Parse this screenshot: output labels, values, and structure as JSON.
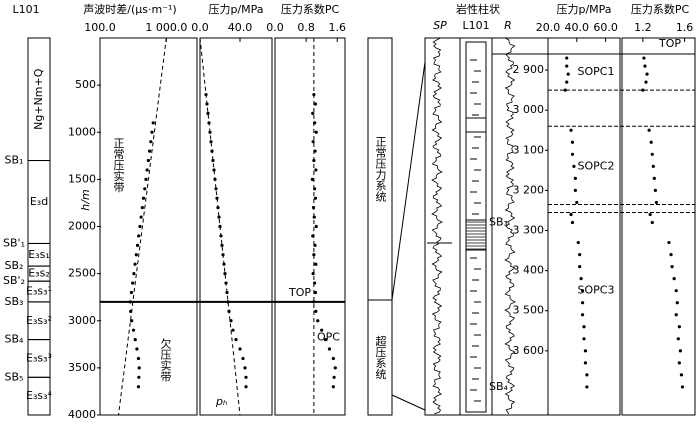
{
  "left": {
    "strat": {
      "title": "L101",
      "units": [
        {
          "label": "Ng+Nm+Q",
          "depth": [
            0,
            1300
          ]
        },
        {
          "label": "E₃d",
          "depth": [
            1300,
            2180
          ]
        },
        {
          "label": "E₃s₁",
          "depth": [
            2180,
            2420
          ]
        },
        {
          "label": "E₃s₂",
          "depth": [
            2420,
            2580
          ]
        },
        {
          "label": "E₃s₃¹",
          "depth": [
            2580,
            2800
          ]
        },
        {
          "label": "E₃s₃²",
          "depth": [
            2800,
            3200
          ]
        },
        {
          "label": "E₃s₃³",
          "depth": [
            3200,
            3600
          ]
        },
        {
          "label": "E₃s₃⁴",
          "depth": [
            3600,
            4000
          ]
        }
      ],
      "boundaries": [
        {
          "label": "SB₁",
          "depth": 1300
        },
        {
          "label": "SB'₁",
          "depth": 2180
        },
        {
          "label": "SB₂",
          "depth": 2420
        },
        {
          "label": "SB'₂",
          "depth": 2580
        },
        {
          "label": "SB₃",
          "depth": 2800
        },
        {
          "label": "SB₄",
          "depth": 3200
        },
        {
          "label": "SB₅",
          "depth": 3600
        }
      ]
    },
    "depth_axis": {
      "label": "h/m",
      "ylim": [
        0,
        4000
      ],
      "yticks": [
        500,
        1000,
        1500,
        2000,
        2500,
        3000,
        3500,
        4000
      ]
    },
    "top": {
      "label": "TOP",
      "depth": 2800
    },
    "sonic": {
      "title": "声波时差/(μs·m⁻¹)",
      "log": true,
      "xlim": [
        100,
        2900
      ],
      "xticks": [
        {
          "value": 100,
          "label": "100.0"
        },
        {
          "value": 1000,
          "label": "1 000.0"
        }
      ],
      "trend": {
        "depth": [
          0,
          4000
        ],
        "values": [
          1000,
          190
        ]
      },
      "annotations": [
        "正常压实带",
        "欠压实带"
      ],
      "depth": [
        900,
        1000,
        1100,
        1200,
        1300,
        1400,
        1500,
        1600,
        1700,
        1800,
        1900,
        2000,
        2100,
        2200,
        2300,
        2400,
        2500,
        2600,
        2700,
        2800,
        2900,
        3000,
        3100,
        3200,
        3300,
        3400,
        3500,
        3600,
        3700
      ],
      "values": [
        634,
        608,
        583,
        559,
        536,
        514,
        493,
        473,
        453,
        435,
        417,
        400,
        383,
        368,
        353,
        338,
        324,
        311,
        298,
        286,
        290,
        300,
        320,
        340,
        360,
        380,
        390,
        385,
        380
      ]
    },
    "pressure": {
      "title": "压力p/MPa",
      "xlim": [
        0,
        72
      ],
      "xticks": [
        {
          "value": 0,
          "label": "0.0"
        },
        {
          "value": 40,
          "label": "40.0"
        }
      ],
      "trend": {
        "label": "pₕ",
        "depth": [
          0,
          4000
        ],
        "values": [
          0,
          40
        ]
      },
      "depth": [
        600,
        700,
        800,
        900,
        1000,
        1100,
        1200,
        1300,
        1400,
        1500,
        1600,
        1700,
        1800,
        1900,
        2000,
        2100,
        2200,
        2300,
        2400,
        2500,
        2600,
        2700,
        2800,
        2900,
        3000,
        3100,
        3200,
        3300,
        3400,
        3500,
        3600,
        3700
      ],
      "values": [
        6,
        7,
        8,
        9,
        10,
        11,
        12,
        13,
        14,
        15,
        16,
        17,
        18,
        19,
        20,
        21,
        22,
        23,
        24,
        25,
        26,
        27,
        28,
        29,
        31,
        33,
        36,
        40,
        43,
        45,
        46,
        46
      ]
    },
    "pc": {
      "title": "压力系数PC",
      "xlim": [
        0,
        1.8
      ],
      "xticks": [
        {
          "value": 0,
          "label": "0.0"
        },
        {
          "value": 0.8,
          "label": "0.8"
        },
        {
          "value": 1.6,
          "label": "1.6"
        }
      ],
      "reference": 1.0,
      "annotation": "OPC",
      "depth": [
        600,
        700,
        800,
        900,
        1000,
        1100,
        1200,
        1300,
        1400,
        1500,
        1600,
        1700,
        1800,
        1900,
        2000,
        2100,
        2200,
        2300,
        2400,
        2500,
        2600,
        2700,
        2800,
        2900,
        3000,
        3100,
        3200,
        3300,
        3400,
        3500,
        3600,
        3700
      ],
      "values": [
        1.0,
        1.04,
        0.97,
        1.02,
        1.06,
        0.98,
        1.03,
        1.0,
        1.05,
        0.96,
        1.02,
        1.04,
        0.99,
        1.01,
        1.06,
        0.97,
        1.03,
        1.0,
        1.05,
        0.98,
        1.02,
        1.04,
        1.0,
        1.05,
        1.1,
        1.2,
        1.3,
        1.4,
        1.5,
        1.55,
        1.52,
        1.5
      ]
    }
  },
  "right": {
    "systems": [
      "正常压力系统",
      "超压系统"
    ],
    "sp_label": "SP",
    "litho_title": "岩性柱状",
    "litho_well": "L101",
    "r_label": "R",
    "depth_axis": {
      "ylim": [
        2820,
        3760
      ],
      "yticks": [
        {
          "value": 2900,
          "label": "2 900"
        },
        {
          "value": 3000,
          "label": "3 000"
        },
        {
          "value": 3100,
          "label": "3 100"
        },
        {
          "value": 3200,
          "label": "3 200"
        },
        {
          "value": 3300,
          "label": "3 300"
        },
        {
          "value": 3400,
          "label": "3 400"
        },
        {
          "value": 3500,
          "label": "3 500"
        },
        {
          "value": 3600,
          "label": "3 600"
        }
      ]
    },
    "sb": [
      {
        "label": "SB₃",
        "depth": 3280
      },
      {
        "label": "SB₄",
        "depth": 3690
      }
    ],
    "top": {
      "label": "TOP",
      "depth": 2860
    },
    "boundaries": [
      2950,
      3040,
      3235,
      3255
    ],
    "zones": [
      {
        "label": "SOPC1",
        "depth": 2905
      },
      {
        "label": "SOPC2",
        "depth": 3140
      },
      {
        "label": "SOPC3",
        "depth": 3450
      }
    ],
    "depth": [
      2870,
      2890,
      2910,
      2930,
      2950,
      3050,
      3080,
      3110,
      3140,
      3170,
      3200,
      3230,
      3260,
      3280,
      3330,
      3360,
      3390,
      3420,
      3450,
      3480,
      3510,
      3540,
      3570,
      3600,
      3630,
      3660,
      3690
    ],
    "pressure": {
      "title": "压力p/MPa",
      "xlim": [
        20,
        70
      ],
      "xticks": [
        {
          "value": 20,
          "label": "20.0"
        },
        {
          "value": 40,
          "label": "40.0"
        },
        {
          "value": 60,
          "label": "60.0"
        }
      ],
      "values": [
        33,
        33,
        34,
        33,
        32,
        36,
        37,
        37,
        38,
        39,
        39,
        40,
        36,
        37,
        41,
        42,
        42,
        43,
        44,
        44,
        44,
        45,
        45,
        46,
        46,
        47,
        47
      ]
    },
    "pc": {
      "title": "压力系数PC",
      "xlim": [
        1.0,
        1.7
      ],
      "xticks": [
        1.2,
        1.6
      ],
      "values": [
        1.21,
        1.22,
        1.24,
        1.23,
        1.2,
        1.26,
        1.28,
        1.29,
        1.3,
        1.31,
        1.32,
        1.33,
        1.27,
        1.29,
        1.45,
        1.47,
        1.48,
        1.5,
        1.52,
        1.53,
        1.52,
        1.55,
        1.54,
        1.56,
        1.55,
        1.57,
        1.58
      ]
    }
  }
}
